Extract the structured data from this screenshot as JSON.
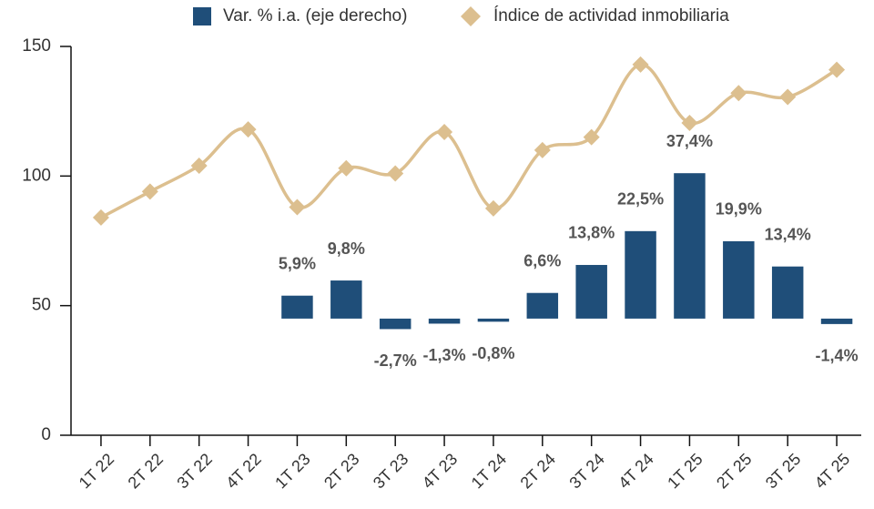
{
  "chart_data": {
    "type": "combo",
    "categories": [
      "1T 22",
      "2T 22",
      "3T 22",
      "4T 22",
      "1T 23",
      "2T 23",
      "3T 23",
      "4T 23",
      "1T 24",
      "2T 24",
      "3T 24",
      "4T 24",
      "1T 25",
      "2T 25",
      "3T 25",
      "4T 25"
    ],
    "series": [
      {
        "name": "Var. % i.a. (eje derecho)",
        "type": "bar",
        "axis": "y2",
        "color": "#1f4e79",
        "values": [
          null,
          null,
          null,
          null,
          5.9,
          9.8,
          -2.7,
          -1.3,
          -0.8,
          6.6,
          13.8,
          22.5,
          37.4,
          19.9,
          13.4,
          -1.4
        ],
        "value_labels": [
          null,
          null,
          null,
          null,
          "5,9%",
          "9,8%",
          "-2,7%",
          "-1,3%",
          "-0,8%",
          "6,6%",
          "13,8%",
          "22,5%",
          "37,4%",
          "19,9%",
          "13,4%",
          "-1,4%"
        ]
      },
      {
        "name": "Índice de actividad inmobiliaria",
        "type": "line",
        "color": "#dcbf8f",
        "values": [
          84,
          94,
          104,
          118,
          88,
          103,
          101,
          117,
          87.5,
          110,
          115,
          143,
          120.5,
          132,
          130.5,
          141
        ]
      }
    ],
    "ylim": [
      0,
      150
    ],
    "yticks": [
      0,
      50,
      100,
      150
    ],
    "y2lim": [
      -30,
      70
    ],
    "legend": "top"
  }
}
